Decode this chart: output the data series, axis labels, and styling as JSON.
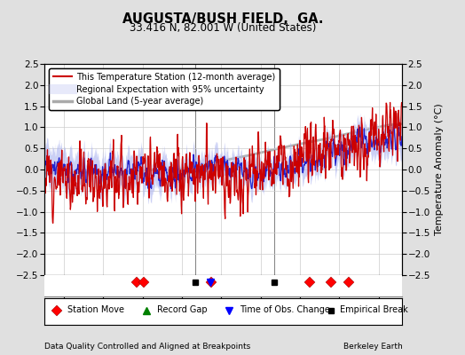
{
  "title": "AUGUSTA/BUSH FIELD,  GA.",
  "subtitle": "33.416 N, 82.001 W (United States)",
  "ylabel": "Temperature Anomaly (°C)",
  "xlabel_left": "Data Quality Controlled and Aligned at Breakpoints",
  "xlabel_right": "Berkeley Earth",
  "xmin": 1925,
  "xmax": 2016,
  "ymin": -2.5,
  "ymax": 2.5,
  "yticks": [
    -2.5,
    -2,
    -1.5,
    -1,
    -0.5,
    0,
    0.5,
    1,
    1.5,
    2,
    2.5
  ],
  "xticks": [
    1930,
    1940,
    1950,
    1960,
    1970,
    1980,
    1990,
    2000,
    2010
  ],
  "bg_color": "#e0e0e0",
  "plot_bg_color": "#ffffff",
  "station_color": "#cc0000",
  "regional_color": "#2222cc",
  "regional_fill_color": "#b0b8f0",
  "global_color": "#aaaaaa",
  "seed": 12,
  "station_moves": [
    1948.5,
    1950.2,
    1967.5,
    1992.5,
    1997.8,
    2002.5
  ],
  "record_gaps": [],
  "obs_changes": [
    1967.2
  ],
  "empirical_breaks": [
    1963.5,
    1983.5
  ],
  "legend_line1": "This Temperature Station (12-month average)",
  "legend_line2": "Regional Expectation with 95% uncertainty",
  "legend_line3": "Global Land (5-year average)",
  "marker_legend": [
    "Station Move",
    "Record Gap",
    "Time of Obs. Change",
    "Empirical Break"
  ]
}
